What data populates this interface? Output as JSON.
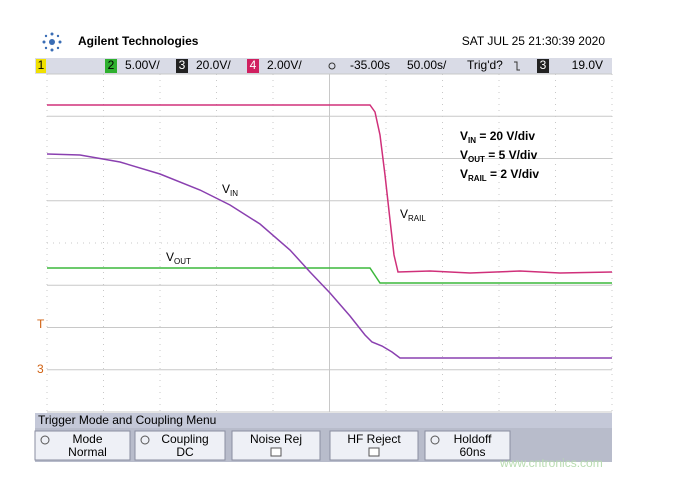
{
  "header": {
    "brand": "Agilent Technologies",
    "datetime": "SAT JUL 25 21:30:39 2020"
  },
  "status_bar": {
    "ch1": "1",
    "ch2": "2",
    "ch2_scale": "5.00V/",
    "ch3": "3",
    "ch3_scale": "20.0V/",
    "ch4": "4",
    "ch4_scale": "2.00V/",
    "delay": "-35.00s",
    "timebase": "50.00s/",
    "trigger_state": "Trig'd?",
    "trigger_source": "3",
    "trigger_level": "19.0V"
  },
  "trace_labels": {
    "vin": {
      "main": "V",
      "sub": "IN"
    },
    "vout": {
      "main": "V",
      "sub": "OUT"
    },
    "vrail": {
      "main": "V",
      "sub": "RAIL"
    }
  },
  "scale_notes": [
    {
      "main": "V",
      "sub": "IN",
      "rest": " = 20 V/div"
    },
    {
      "main": "V",
      "sub": "OUT",
      "rest": " = 5 V/div"
    },
    {
      "main": "V",
      "sub": "RAIL",
      "rest": " = 2 V/div"
    }
  ],
  "markers": {
    "trigger": "T",
    "channel": "3"
  },
  "menu": {
    "title": "Trigger Mode and Coupling Menu",
    "buttons": [
      {
        "label": "Mode",
        "value": "Normal"
      },
      {
        "label": "Coupling",
        "value": "DC"
      },
      {
        "label": "Noise Rej"
      },
      {
        "label": "HF Reject"
      },
      {
        "label": "Holdoff",
        "value": "60ns"
      }
    ]
  },
  "watermark": "www.cntronics.com"
}
